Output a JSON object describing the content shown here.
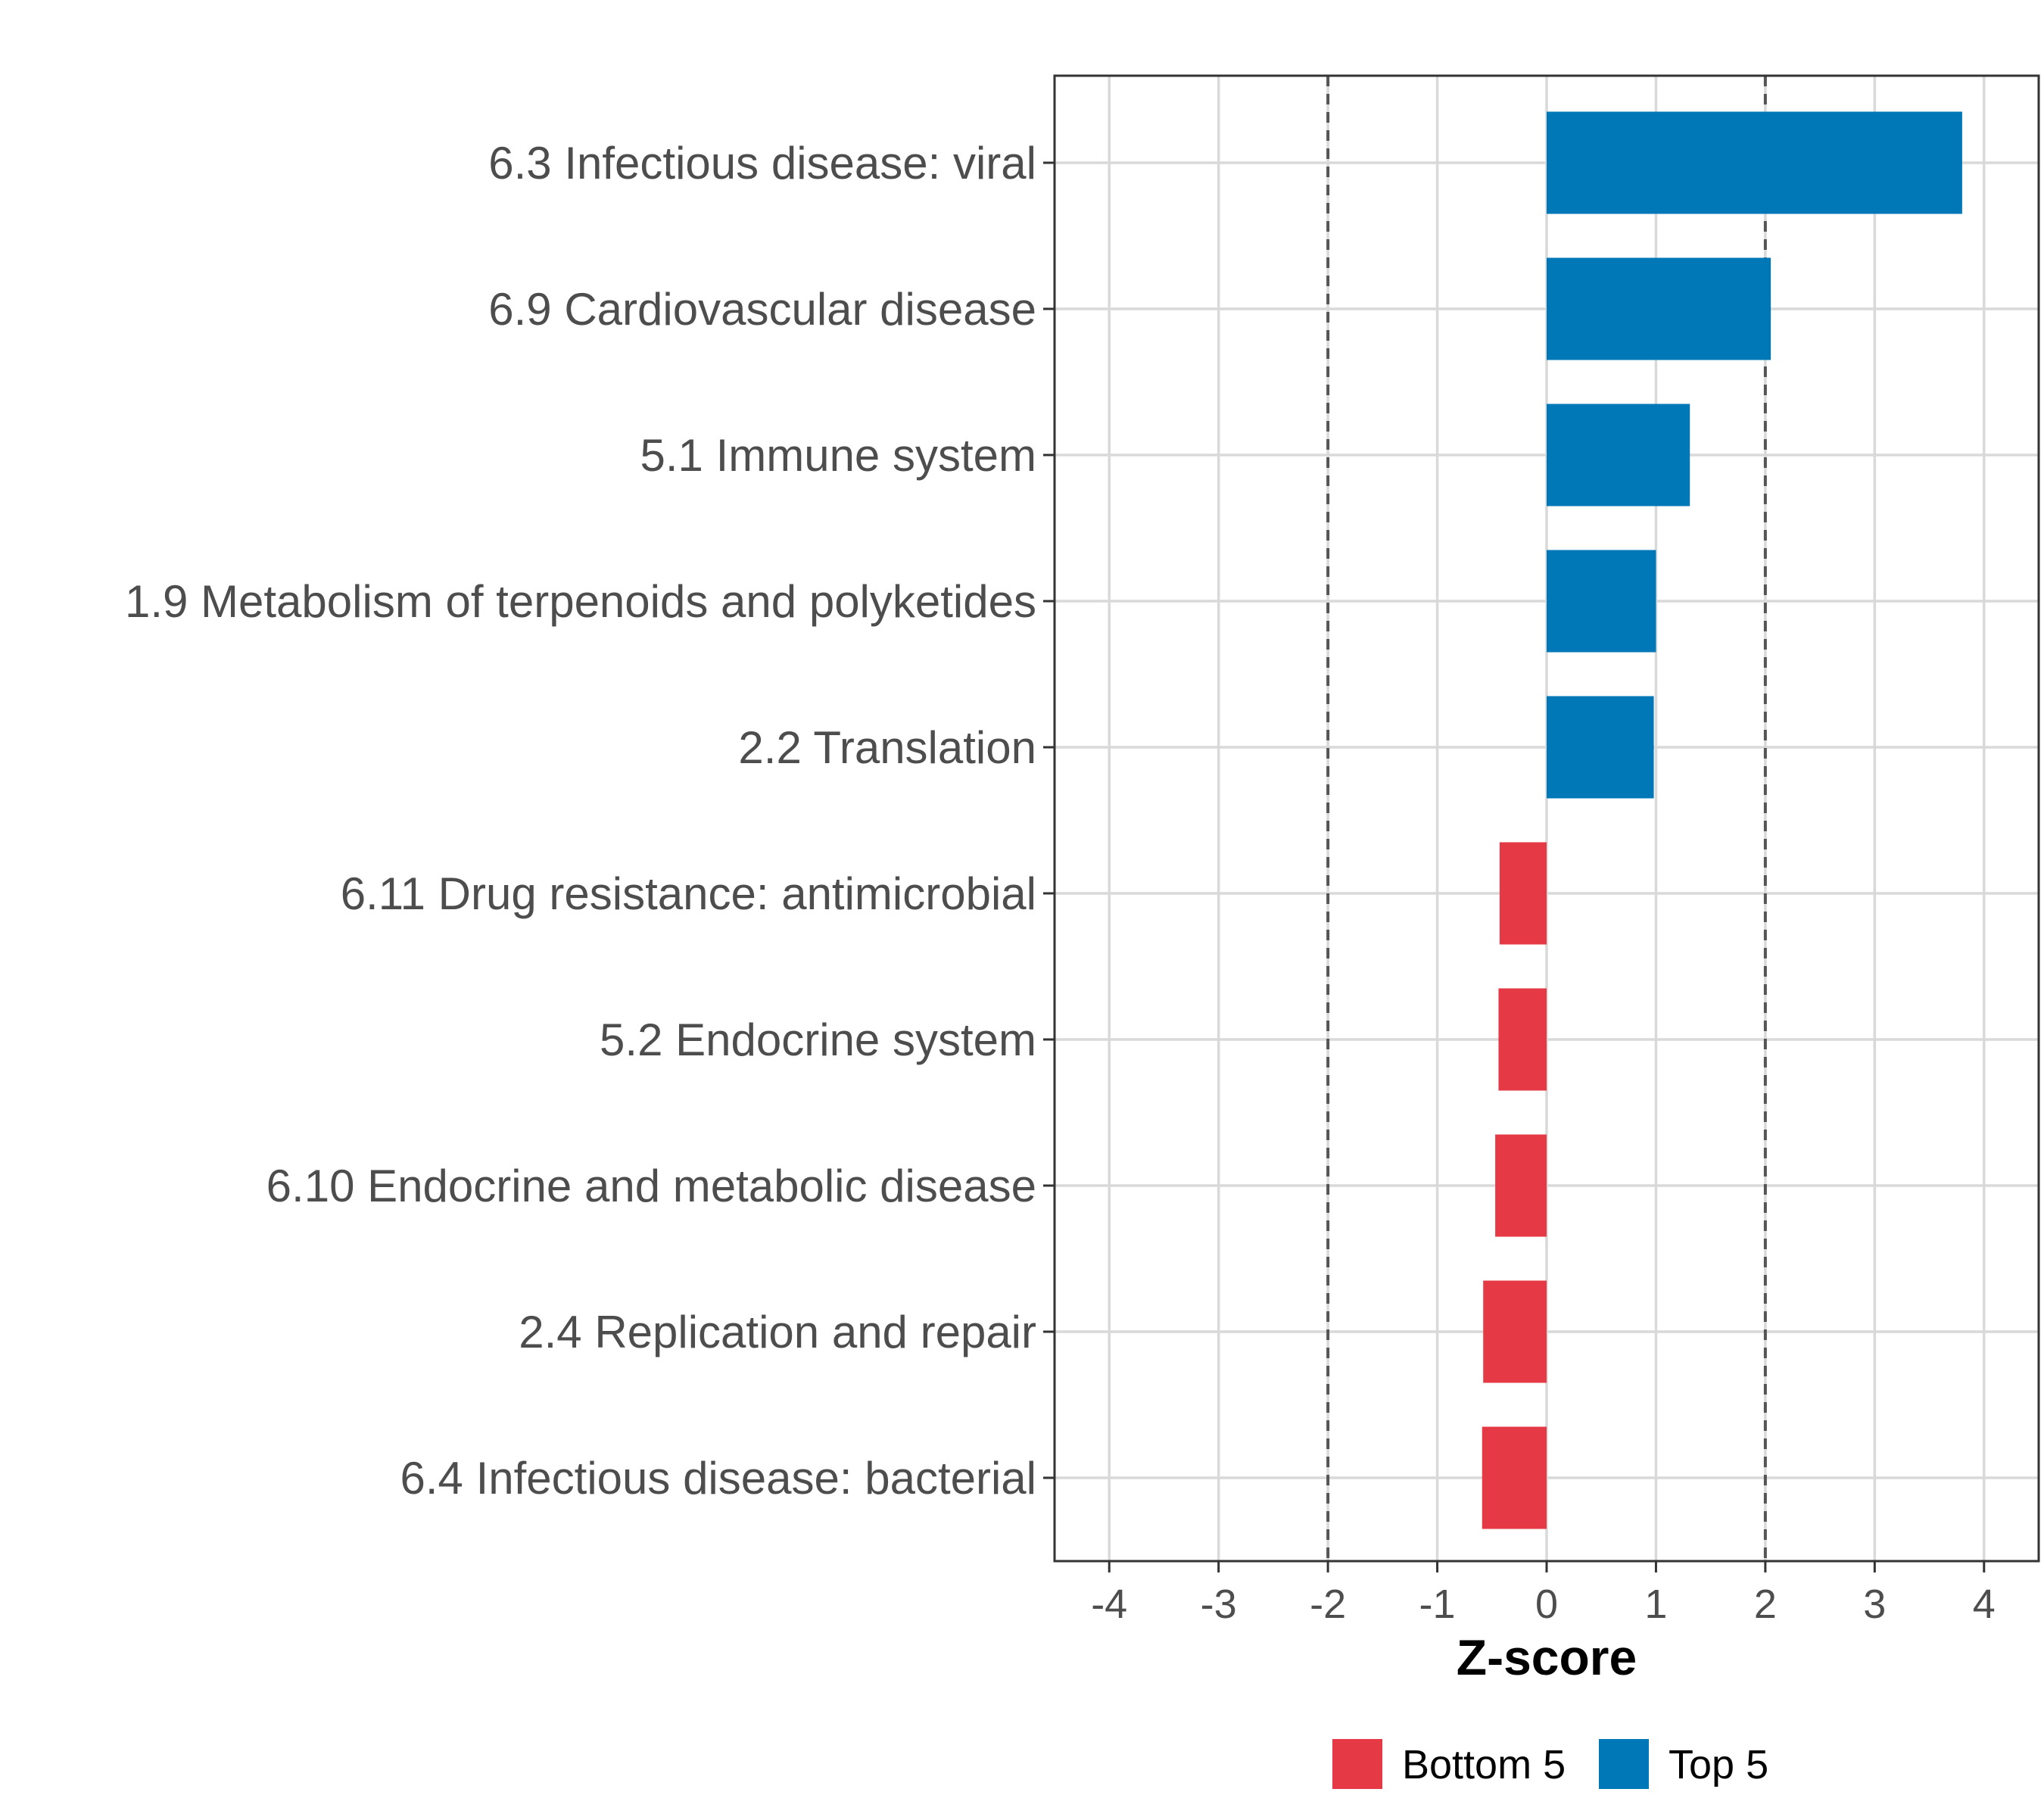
{
  "chart_data": {
    "type": "bar",
    "orientation": "horizontal",
    "title": "",
    "xlabel": "Z-score",
    "ylabel": "",
    "xlim": [
      -4.5,
      4.5
    ],
    "xticks": [
      -4,
      -3,
      -2,
      -1,
      0,
      1,
      2,
      3,
      4
    ],
    "xtick_labels": [
      "-4",
      "-3",
      "-2",
      "-1",
      "0",
      "1",
      "2",
      "3",
      "4"
    ],
    "reference_lines": [
      -2,
      2
    ],
    "grid": true,
    "categories": [
      "6.3 Infectious disease: viral",
      "6.9 Cardiovascular disease",
      "5.1 Immune system",
      "1.9 Metabolism of terpenoids and polyketides",
      "2.2 Translation",
      "6.11 Drug resistance: antimicrobial",
      "5.2 Endocrine system",
      "6.10 Endocrine and metabolic disease",
      "2.4 Replication and repair",
      "6.4 Infectious disease: bacterial"
    ],
    "values": [
      3.8,
      2.05,
      1.31,
      1.0,
      0.98,
      -0.43,
      -0.44,
      -0.47,
      -0.58,
      -0.59
    ],
    "groups": [
      "Top 5",
      "Top 5",
      "Top 5",
      "Top 5",
      "Top 5",
      "Bottom 5",
      "Bottom 5",
      "Bottom 5",
      "Bottom 5",
      "Bottom 5"
    ],
    "legend": {
      "position": "bottom",
      "entries": [
        {
          "label": "Bottom 5",
          "color": "#e63946"
        },
        {
          "label": "Top 5",
          "color": "#0077b6"
        }
      ]
    },
    "colors": {
      "Top 5": "#0077b6",
      "Bottom 5": "#e63946"
    }
  }
}
